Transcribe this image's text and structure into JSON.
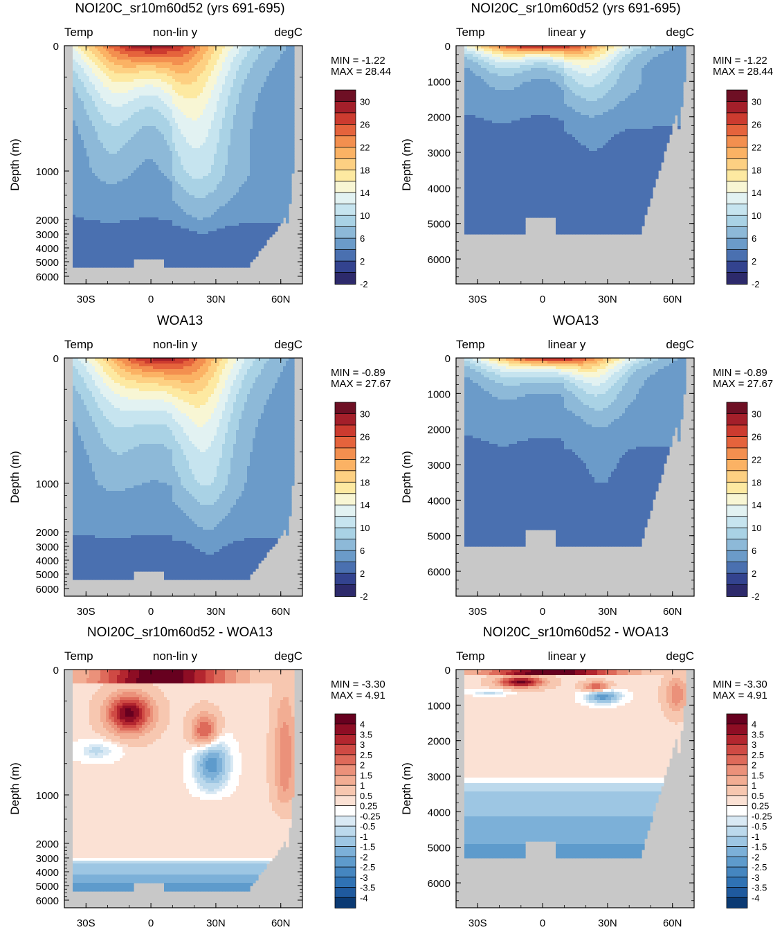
{
  "chart_data": [
    {
      "type": "contour",
      "title": "NOI20C_sr10m60d52 (yrs 691-695)",
      "left_label": "Temp",
      "center_label": "non-lin y",
      "right_label": "degC",
      "ylabel": "Depth (m)",
      "y_ticks": [
        "0",
        "1000",
        "2000",
        "3000",
        "4000",
        "5000",
        "6000"
      ],
      "x_ticks": [
        "30S",
        "0",
        "30N",
        "60N"
      ],
      "min_text": "MIN =  -1.22",
      "max_text": "MAX =  28.44",
      "colorbar_labels": [
        "30",
        "26",
        "22",
        "18",
        "14",
        "10",
        "6",
        "2",
        "-2"
      ],
      "field": "temperature"
    },
    {
      "type": "contour",
      "title": "NOI20C_sr10m60d52 (yrs 691-695)",
      "left_label": "Temp",
      "center_label": "linear y",
      "right_label": "degC",
      "ylabel": "Depth (m)",
      "y_ticks": [
        "0",
        "1000",
        "2000",
        "3000",
        "4000",
        "5000",
        "6000"
      ],
      "x_ticks": [
        "30S",
        "0",
        "30N",
        "60N"
      ],
      "min_text": "MIN =  -1.22",
      "max_text": "MAX =  28.44",
      "colorbar_labels": [
        "30",
        "26",
        "22",
        "18",
        "14",
        "10",
        "6",
        "2",
        "-2"
      ],
      "field": "temperature"
    },
    {
      "type": "contour",
      "title": "WOA13",
      "left_label": "Temp",
      "center_label": "non-lin y",
      "right_label": "degC",
      "ylabel": "Depth (m)",
      "y_ticks": [
        "0",
        "1000",
        "2000",
        "3000",
        "4000",
        "5000",
        "6000"
      ],
      "x_ticks": [
        "30S",
        "0",
        "30N",
        "60N"
      ],
      "min_text": "MIN =  -0.89",
      "max_text": "MAX =  27.67",
      "colorbar_labels": [
        "30",
        "26",
        "22",
        "18",
        "14",
        "10",
        "6",
        "2",
        "-2"
      ],
      "field": "temperature"
    },
    {
      "type": "contour",
      "title": "WOA13",
      "left_label": "Temp",
      "center_label": "linear y",
      "right_label": "degC",
      "ylabel": "Depth (m)",
      "y_ticks": [
        "0",
        "1000",
        "2000",
        "3000",
        "4000",
        "5000",
        "6000"
      ],
      "x_ticks": [
        "30S",
        "0",
        "30N",
        "60N"
      ],
      "min_text": "MIN =  -0.89",
      "max_text": "MAX =  27.67",
      "colorbar_labels": [
        "30",
        "26",
        "22",
        "18",
        "14",
        "10",
        "6",
        "2",
        "-2"
      ],
      "field": "temperature"
    },
    {
      "type": "contour",
      "title": "NOI20C_sr10m60d52 - WOA13",
      "left_label": "Temp",
      "center_label": "non-lin y",
      "right_label": "degC",
      "ylabel": "Depth (m)",
      "y_ticks": [
        "0",
        "1000",
        "2000",
        "3000",
        "4000",
        "5000",
        "6000"
      ],
      "x_ticks": [
        "30S",
        "0",
        "30N",
        "60N"
      ],
      "min_text": "MIN =  -3.30",
      "max_text": "MAX =   4.91",
      "colorbar_labels": [
        "4",
        "3.5",
        "3",
        "2.5",
        "2",
        "1.5",
        "1",
        "0.5",
        "0.25",
        "-0.25",
        "-0.5",
        "-1",
        "-1.5",
        "-2",
        "-2.5",
        "-3",
        "-3.5",
        "-4"
      ],
      "field": "difference"
    },
    {
      "type": "contour",
      "title": "NOI20C_sr10m60d52 - WOA13",
      "left_label": "Temp",
      "center_label": "linear y",
      "right_label": "degC",
      "ylabel": "Depth (m)",
      "y_ticks": [
        "0",
        "1000",
        "2000",
        "3000",
        "4000",
        "5000",
        "6000"
      ],
      "x_ticks": [
        "30S",
        "0",
        "30N",
        "60N"
      ],
      "min_text": "MIN =  -3.30",
      "max_text": "MAX =   4.91",
      "colorbar_labels": [
        "4",
        "3.5",
        "3",
        "2.5",
        "2",
        "1.5",
        "1",
        "0.5",
        "0.25",
        "-0.25",
        "-0.5",
        "-1",
        "-1.5",
        "-2",
        "-2.5",
        "-3",
        "-3.5",
        "-4"
      ],
      "field": "difference"
    }
  ],
  "colors": {
    "land": "#c8c8c8",
    "temp_palette": [
      "#2d2a6b",
      "#33438f",
      "#4a70b0",
      "#6b9bc9",
      "#8db9d8",
      "#a9d2e5",
      "#c6e4ef",
      "#e2f2f2",
      "#f8f6d4",
      "#fde9a1",
      "#fdd082",
      "#fbb264",
      "#f38f4f",
      "#e5633c",
      "#cc3b2f",
      "#a41f2a",
      "#6e0f24"
    ],
    "diff_palette": [
      "#0b3a73",
      "#1f5a9e",
      "#2f72b4",
      "#4586c0",
      "#5e9bcc",
      "#7cb0d8",
      "#9dc6e3",
      "#bcd9ec",
      "#d9e9f4",
      "#ffffff",
      "#fbe1d4",
      "#f7c7b0",
      "#f2ad93",
      "#eb917a",
      "#de6a5a",
      "#cf4a44",
      "#b3262f",
      "#8e0d24",
      "#67001f"
    ]
  }
}
